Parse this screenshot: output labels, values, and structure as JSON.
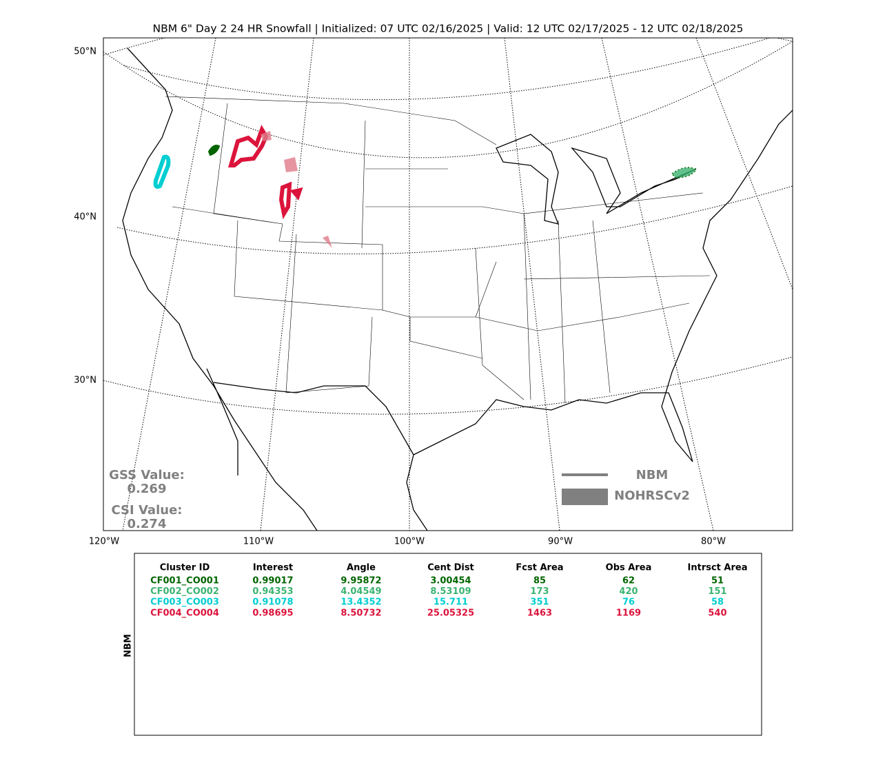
{
  "header": {
    "title": "NBM 6\" Day 2 24 HR Snowfall | Initialized: 07 UTC 02/16/2025 | Valid: 12 UTC 02/17/2025 - 12 UTC 02/18/2025"
  },
  "map": {
    "lat_labels": [
      "50°N",
      "40°N",
      "30°N"
    ],
    "lon_labels": [
      "120°W",
      "110°W",
      "100°W",
      "90°W",
      "80°W"
    ],
    "scores": [
      {
        "label": "GSS Value:",
        "value": "0.269"
      },
      {
        "label": "CSI Value:",
        "value": "0.274"
      }
    ],
    "legend": [
      "NBM",
      "NOHRSCv2"
    ]
  },
  "table": {
    "side_label": "NBM",
    "columns": [
      "Cluster ID",
      "Interest",
      "Angle",
      "Cent Dist",
      "Fcst Area",
      "Obs Area",
      "Intrsct Area"
    ],
    "rows": [
      {
        "color": "#006400",
        "cells": [
          "CF001_CO001",
          "0.99017",
          "9.95872",
          "3.00454",
          "85",
          "62",
          "51"
        ]
      },
      {
        "color": "#3cb371",
        "cells": [
          "CF002_CO002",
          "0.94353",
          "4.04549",
          "8.53109",
          "173",
          "420",
          "151"
        ]
      },
      {
        "color": "#00ced1",
        "cells": [
          "CF003_CO003",
          "0.91078",
          "13.4352",
          "15.711",
          "351",
          "76",
          "58"
        ]
      },
      {
        "color": "#dc143c",
        "cells": [
          "CF004_CO004",
          "0.98695",
          "8.50732",
          "25.05325",
          "1463",
          "1169",
          "540"
        ]
      }
    ]
  }
}
